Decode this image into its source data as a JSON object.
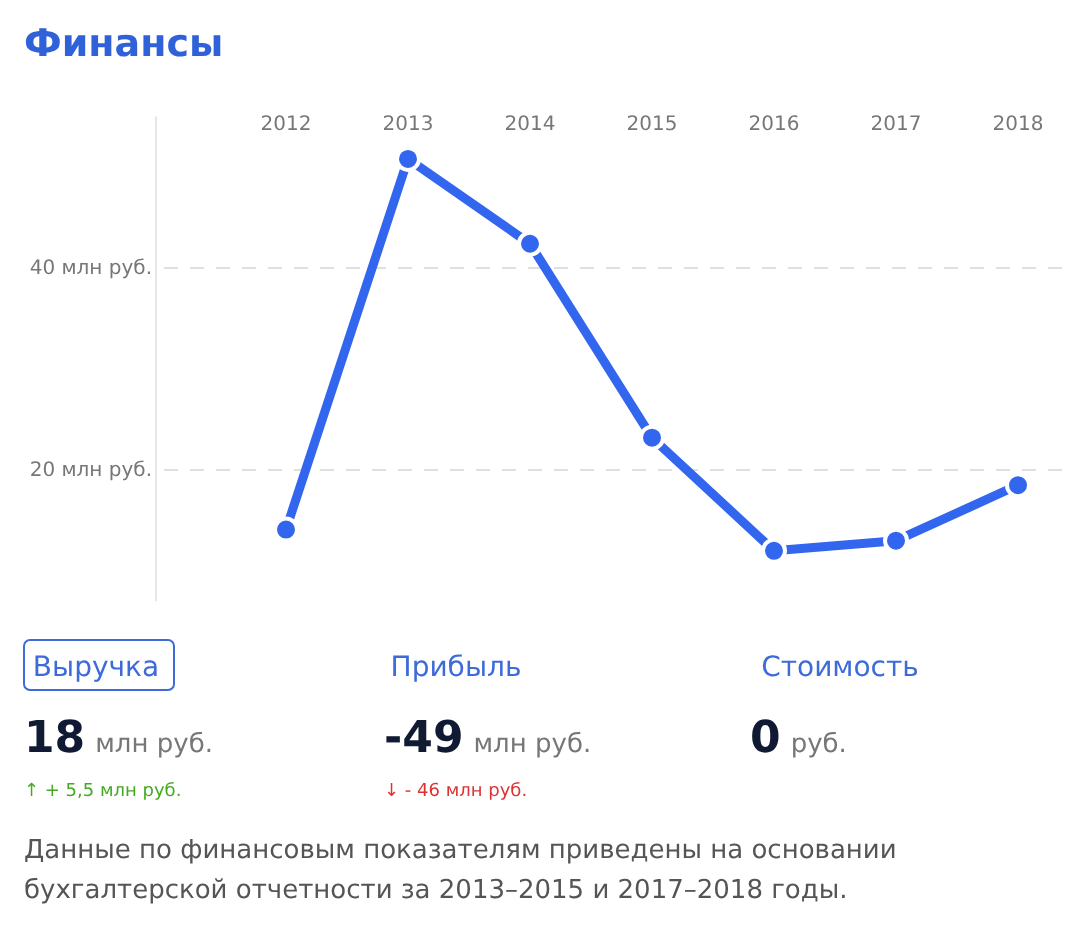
{
  "chart_data": {
    "type": "line",
    "title": "Финансы",
    "categories": [
      "2012",
      "2013",
      "2014",
      "2015",
      "2016",
      "2017",
      "2018"
    ],
    "series": [
      {
        "color": "#3366ee",
        "values": [
          14.1,
          50.8,
          42.4,
          23.2,
          12,
          13,
          18.5
        ]
      }
    ],
    "ylim": [
      7,
      55
    ],
    "yticks": [
      {
        "value": 20,
        "label": "20 млн руб."
      },
      {
        "value": 40,
        "label": "40 млн руб."
      }
    ],
    "grid": "y",
    "marker": "circle",
    "line_style": "solid",
    "annotations": [
      "Выручка",
      "Прибыль",
      "Стоимость",
      "18",
      "млн руб.",
      "-49",
      "млн руб.",
      "0",
      "руб.",
      "↑ + 5,5 млн руб.",
      "↓ - 46 млн руб.",
      "Данные по финансовым показателям приведены на основании бухгалтерской отчетности за 2013–2015 и 2017–2018 годы."
    ]
  }
}
